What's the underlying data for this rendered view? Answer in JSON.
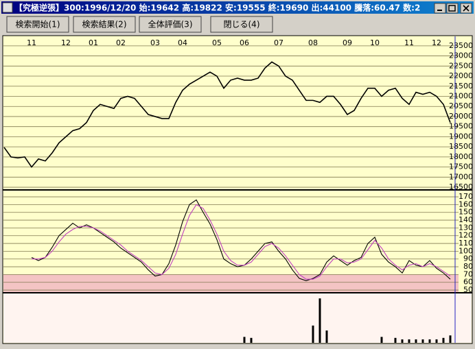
{
  "window": {
    "title": "【究極逆張】300:1996/12/20 始:19642 高:19822 安:19555 終:19690 出:44100 騰落:60.47 数:2",
    "buttons": [
      "検索開始(1)",
      "検索結果(2)",
      "全体評価(3)",
      "閉じる(4)"
    ]
  },
  "chart_data": [
    {
      "type": "line",
      "categories": [
        null,
        null,
        null,
        null,
        "11",
        null,
        null,
        null,
        null,
        "12",
        null,
        null,
        null,
        "01",
        null,
        null,
        null,
        "02",
        null,
        null,
        null,
        null,
        "03",
        null,
        null,
        null,
        "04",
        null,
        null,
        null,
        null,
        "05",
        null,
        null,
        null,
        "06",
        null,
        null,
        null,
        null,
        "07",
        null,
        null,
        null,
        null,
        "08",
        null,
        null,
        null,
        null,
        "09",
        null,
        null,
        null,
        "10",
        null,
        null,
        null,
        null,
        "11",
        null,
        null,
        null,
        "12",
        null,
        null
      ],
      "series": [
        {
          "color": "#000000",
          "values": [
            18470,
            18000,
            17950,
            18000,
            17500,
            17900,
            17800,
            18200,
            18700,
            19000,
            19300,
            19400,
            19700,
            20300,
            20600,
            20500,
            20400,
            20900,
            21000,
            20900,
            20500,
            20100,
            20000,
            19900,
            19900,
            20700,
            21300,
            21600,
            21800,
            22000,
            22200,
            22000,
            21400,
            21800,
            21900,
            21800,
            21800,
            21900,
            22400,
            22700,
            22500,
            22000,
            21800,
            21300,
            20800,
            20800,
            20700,
            21000,
            21000,
            20600,
            20100,
            20300,
            20900,
            21400,
            21400,
            21000,
            21300,
            21400,
            20900,
            20600,
            21200,
            21100,
            21200,
            21000,
            20600,
            19700
          ]
        }
      ],
      "ylim": [
        16400,
        23800
      ],
      "yticks": [
        16500,
        17000,
        17500,
        18000,
        18500,
        19000,
        19500,
        20000,
        20500,
        21000,
        21500,
        22000,
        22500,
        23000,
        23500
      ],
      "grid": true,
      "background": "#ffffcc"
    },
    {
      "type": "line",
      "series": [
        {
          "color": "#000000",
          "values": [
            null,
            null,
            null,
            null,
            92,
            88,
            92,
            105,
            120,
            128,
            136,
            130,
            134,
            130,
            124,
            118,
            112,
            104,
            98,
            92,
            86,
            76,
            68,
            70,
            84,
            108,
            138,
            160,
            166,
            150,
            135,
            115,
            90,
            84,
            80,
            82,
            90,
            100,
            110,
            112,
            100,
            90,
            76,
            65,
            62,
            65,
            70,
            86,
            94,
            88,
            82,
            88,
            92,
            110,
            118,
            96,
            86,
            80,
            72,
            88,
            82,
            80,
            88,
            78,
            72,
            64
          ]
        },
        {
          "color": "#c040c0",
          "values": [
            null,
            null,
            null,
            null,
            90,
            90,
            92,
            100,
            112,
            122,
            128,
            132,
            132,
            130,
            126,
            120,
            114,
            108,
            100,
            94,
            88,
            80,
            72,
            70,
            78,
            96,
            122,
            146,
            160,
            155,
            140,
            122,
            100,
            88,
            82,
            82,
            86,
            96,
            106,
            110,
            104,
            94,
            82,
            70,
            64,
            64,
            68,
            80,
            90,
            90,
            85,
            86,
            90,
            102,
            114,
            104,
            90,
            82,
            76,
            82,
            84,
            80,
            84,
            80,
            74,
            68
          ]
        }
      ],
      "ylim": [
        47.4,
        178
      ],
      "yticks": [
        50,
        60,
        70,
        80,
        90,
        100,
        110,
        120,
        130,
        140,
        150,
        160,
        170
      ],
      "grid": true,
      "background": "#ffffcc",
      "band": {
        "to": 70,
        "color": "#f4c4c4"
      }
    },
    {
      "type": "bar",
      "values": [
        0,
        0,
        0,
        0,
        0,
        0,
        0,
        0,
        0,
        0,
        0,
        0,
        0,
        0,
        0,
        0,
        0,
        0,
        0,
        0,
        0,
        0,
        0,
        0,
        0,
        0,
        0,
        0,
        0,
        0,
        0,
        0,
        0,
        0,
        0,
        12,
        10,
        0,
        0,
        0,
        0,
        0,
        0,
        0,
        0,
        35,
        90,
        25,
        0,
        0,
        0,
        0,
        0,
        0,
        0,
        12,
        0,
        10,
        7,
        7,
        7,
        7,
        7,
        7,
        10,
        15
      ],
      "color": "#000000",
      "ylim": [
        0,
        100
      ],
      "background": "#fff4f0"
    }
  ]
}
